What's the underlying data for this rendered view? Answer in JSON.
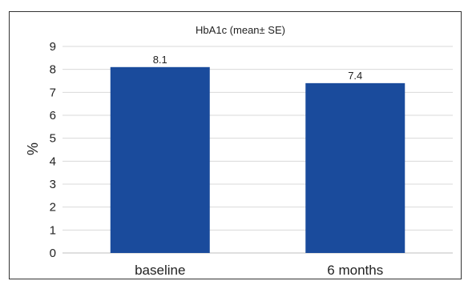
{
  "chart_data": {
    "type": "bar",
    "title": "HbA1c (mean± SE)",
    "xlabel": "",
    "ylabel": "%",
    "categories": [
      "baseline",
      "6 months"
    ],
    "values": [
      8.1,
      7.4
    ],
    "data_labels": [
      "8.1",
      "7.4"
    ],
    "ylim": [
      0,
      9
    ],
    "yticks": [
      0,
      1,
      2,
      3,
      4,
      5,
      6,
      7,
      8,
      9
    ],
    "grid": "horizontal",
    "legend": "none",
    "bar_color": "#1a4b9c",
    "grid_color": "#d9d9d9"
  }
}
